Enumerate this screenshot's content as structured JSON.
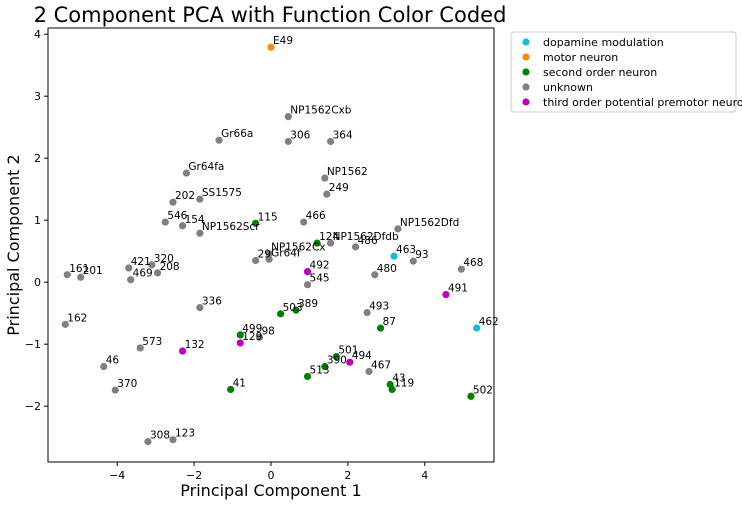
{
  "chart_data": {
    "type": "scatter",
    "title": "2 Component PCA with Function Color Coded",
    "xlabel": "Principal Component 1",
    "ylabel": "Principal Component 2",
    "xlim": [
      -5.8,
      5.8
    ],
    "ylim": [
      -2.9,
      4.1
    ],
    "xticks": [
      -4,
      -2,
      0,
      2,
      4
    ],
    "yticks": [
      -2,
      -1,
      0,
      1,
      2,
      3,
      4
    ],
    "legend_position": "outside-right",
    "categories": [
      {
        "name": "dopamine modulation",
        "color": "#17becf"
      },
      {
        "name": "motor neuron",
        "color": "#ff8c00"
      },
      {
        "name": "second order neuron",
        "color": "#008000"
      },
      {
        "name": "unknown",
        "color": "#808080"
      },
      {
        "name": "third order potential premotor neuron",
        "color": "#c000c0"
      }
    ],
    "points": [
      {
        "label": "E49",
        "x": 0.0,
        "y": 3.79,
        "category": "motor neuron"
      },
      {
        "label": "NP1562Cxb",
        "x": 0.45,
        "y": 2.67,
        "category": "unknown"
      },
      {
        "label": "Gr66a",
        "x": -1.35,
        "y": 2.29,
        "category": "unknown"
      },
      {
        "label": "306",
        "x": 0.45,
        "y": 2.27,
        "category": "unknown"
      },
      {
        "label": "364",
        "x": 1.55,
        "y": 2.27,
        "category": "unknown"
      },
      {
        "label": "NP1562",
        "x": 1.4,
        "y": 1.68,
        "category": "unknown"
      },
      {
        "label": "Gr64fa",
        "x": -2.2,
        "y": 1.76,
        "category": "unknown"
      },
      {
        "label": "249",
        "x": 1.45,
        "y": 1.42,
        "category": "unknown"
      },
      {
        "label": "202",
        "x": -2.55,
        "y": 1.29,
        "category": "unknown"
      },
      {
        "label": "SS1575",
        "x": -1.85,
        "y": 1.34,
        "category": "unknown"
      },
      {
        "label": "546",
        "x": -2.75,
        "y": 0.97,
        "category": "unknown"
      },
      {
        "label": "154",
        "x": -2.3,
        "y": 0.91,
        "category": "unknown"
      },
      {
        "label": "115",
        "x": -0.4,
        "y": 0.95,
        "category": "second order neuron"
      },
      {
        "label": "466",
        "x": 0.85,
        "y": 0.97,
        "category": "unknown"
      },
      {
        "label": "NP1562Dfd",
        "x": 3.3,
        "y": 0.86,
        "category": "unknown"
      },
      {
        "label": "NP1562Scr",
        "x": -1.85,
        "y": 0.79,
        "category": "unknown"
      },
      {
        "label": "124",
        "x": 1.2,
        "y": 0.63,
        "category": "second order neuron"
      },
      {
        "label": "NP1562Dfdb",
        "x": 1.55,
        "y": 0.63,
        "category": "unknown"
      },
      {
        "label": "486",
        "x": 2.2,
        "y": 0.57,
        "category": "unknown"
      },
      {
        "label": "NP1562Cx",
        "x": -0.05,
        "y": 0.46,
        "category": "unknown"
      },
      {
        "label": "29",
        "x": -0.4,
        "y": 0.35,
        "category": "unknown"
      },
      {
        "label": "Gr64f",
        "x": -0.05,
        "y": 0.37,
        "category": "unknown"
      },
      {
        "label": "463",
        "x": 3.2,
        "y": 0.42,
        "category": "dopamine modulation"
      },
      {
        "label": "93",
        "x": 3.7,
        "y": 0.34,
        "category": "unknown"
      },
      {
        "label": "468",
        "x": 4.95,
        "y": 0.21,
        "category": "unknown"
      },
      {
        "label": "492",
        "x": 0.95,
        "y": 0.17,
        "category": "third order potential premotor neuron"
      },
      {
        "label": "480",
        "x": 2.7,
        "y": 0.12,
        "category": "unknown"
      },
      {
        "label": "421",
        "x": -3.7,
        "y": 0.23,
        "category": "unknown"
      },
      {
        "label": "320",
        "x": -3.1,
        "y": 0.28,
        "category": "unknown"
      },
      {
        "label": "161",
        "x": -5.3,
        "y": 0.12,
        "category": "unknown"
      },
      {
        "label": "201",
        "x": -4.95,
        "y": 0.08,
        "category": "unknown"
      },
      {
        "label": "208",
        "x": -2.95,
        "y": 0.15,
        "category": "unknown"
      },
      {
        "label": "469",
        "x": -3.65,
        "y": 0.04,
        "category": "unknown"
      },
      {
        "label": "545",
        "x": 0.95,
        "y": -0.04,
        "category": "unknown"
      },
      {
        "label": "491",
        "x": 4.55,
        "y": -0.2,
        "category": "third order potential premotor neuron"
      },
      {
        "label": "336",
        "x": -1.85,
        "y": -0.41,
        "category": "unknown"
      },
      {
        "label": "389",
        "x": 0.65,
        "y": -0.45,
        "category": "second order neuron"
      },
      {
        "label": "493",
        "x": 2.5,
        "y": -0.49,
        "category": "unknown"
      },
      {
        "label": "503",
        "x": 0.25,
        "y": -0.51,
        "category": "second order neuron"
      },
      {
        "label": "462",
        "x": 5.35,
        "y": -0.74,
        "category": "dopamine modulation"
      },
      {
        "label": "87",
        "x": 2.85,
        "y": -0.74,
        "category": "second order neuron"
      },
      {
        "label": "162",
        "x": -5.35,
        "y": -0.68,
        "category": "unknown"
      },
      {
        "label": "499",
        "x": -0.8,
        "y": -0.85,
        "category": "second order neuron"
      },
      {
        "label": "98",
        "x": -0.3,
        "y": -0.89,
        "category": "unknown"
      },
      {
        "label": "129",
        "x": -0.8,
        "y": -0.98,
        "category": "third order potential premotor neuron"
      },
      {
        "label": "573",
        "x": -3.4,
        "y": -1.06,
        "category": "unknown"
      },
      {
        "label": "132",
        "x": -2.3,
        "y": -1.11,
        "category": "third order potential premotor neuron"
      },
      {
        "label": "501",
        "x": 1.7,
        "y": -1.2,
        "category": "second order neuron"
      },
      {
        "label": "494",
        "x": 2.05,
        "y": -1.29,
        "category": "third order potential premotor neuron"
      },
      {
        "label": "390",
        "x": 1.4,
        "y": -1.36,
        "category": "second order neuron"
      },
      {
        "label": "467",
        "x": 2.55,
        "y": -1.44,
        "category": "unknown"
      },
      {
        "label": "46",
        "x": -4.35,
        "y": -1.36,
        "category": "unknown"
      },
      {
        "label": "513",
        "x": 0.95,
        "y": -1.52,
        "category": "second order neuron"
      },
      {
        "label": "43",
        "x": 3.1,
        "y": -1.65,
        "category": "second order neuron"
      },
      {
        "label": "41",
        "x": -1.05,
        "y": -1.73,
        "category": "second order neuron"
      },
      {
        "label": "370",
        "x": -4.05,
        "y": -1.74,
        "category": "unknown"
      },
      {
        "label": "119",
        "x": 3.15,
        "y": -1.73,
        "category": "second order neuron"
      },
      {
        "label": "502",
        "x": 5.2,
        "y": -1.84,
        "category": "second order neuron"
      },
      {
        "label": "123",
        "x": -2.55,
        "y": -2.54,
        "category": "unknown"
      },
      {
        "label": "308",
        "x": -3.2,
        "y": -2.57,
        "category": "unknown"
      }
    ]
  }
}
